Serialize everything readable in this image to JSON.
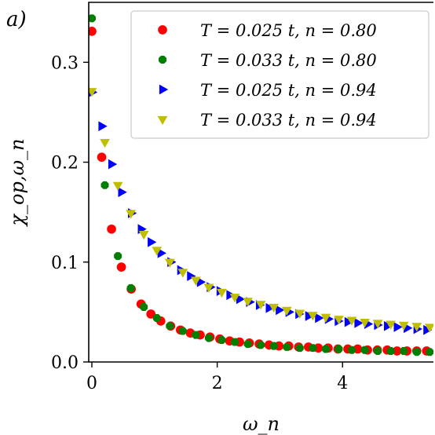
{
  "panel_label": "a)",
  "chart_data": {
    "type": "scatter",
    "xlabel": "ω_n",
    "ylabel": "χ_op,ω_n",
    "xlim": [
      -0.05,
      5.45
    ],
    "ylim": [
      0.0,
      0.36
    ],
    "xticks": [
      0,
      2,
      4
    ],
    "xtick_labels": [
      "0",
      "2",
      "4"
    ],
    "yticks": [
      0.0,
      0.1,
      0.2,
      0.3
    ],
    "ytick_labels": [
      "0.0",
      "0.1",
      "0.2",
      "0.3"
    ],
    "grid": false,
    "legend_position": "top-right",
    "series": [
      {
        "name": "T = 0.025 t, n = 0.80",
        "color": "#ff0000",
        "marker": "circle",
        "x": [
          0.0,
          0.157,
          0.314,
          0.471,
          0.628,
          0.785,
          0.942,
          1.1,
          1.257,
          1.414,
          1.571,
          1.728,
          1.885,
          2.042,
          2.199,
          2.356,
          2.513,
          2.67,
          2.827,
          2.985,
          3.142,
          3.299,
          3.456,
          3.613,
          3.77,
          3.927,
          4.084,
          4.241,
          4.398,
          4.555,
          4.712,
          4.869,
          5.027,
          5.184,
          5.341
        ],
        "y": [
          0.331,
          0.205,
          0.133,
          0.095,
          0.073,
          0.058,
          0.048,
          0.041,
          0.036,
          0.032,
          0.029,
          0.027,
          0.025,
          0.023,
          0.021,
          0.02,
          0.019,
          0.018,
          0.017,
          0.016,
          0.016,
          0.015,
          0.015,
          0.014,
          0.014,
          0.013,
          0.013,
          0.013,
          0.012,
          0.012,
          0.012,
          0.011,
          0.011,
          0.011,
          0.011
        ]
      },
      {
        "name": "T = 0.033 t, n = 0.80",
        "color": "#008000",
        "marker": "octagon",
        "x": [
          0.0,
          0.207,
          0.415,
          0.622,
          0.829,
          1.037,
          1.244,
          1.451,
          1.659,
          1.866,
          2.073,
          2.281,
          2.488,
          2.695,
          2.903,
          3.11,
          3.318,
          3.525,
          3.732,
          3.94,
          4.147,
          4.354,
          4.562,
          4.769,
          4.976,
          5.184,
          5.391
        ],
        "y": [
          0.344,
          0.177,
          0.106,
          0.074,
          0.055,
          0.044,
          0.036,
          0.031,
          0.027,
          0.024,
          0.022,
          0.02,
          0.018,
          0.017,
          0.016,
          0.015,
          0.014,
          0.014,
          0.013,
          0.013,
          0.012,
          0.012,
          0.011,
          0.011,
          0.011,
          0.01,
          0.01
        ]
      },
      {
        "name": "T = 0.025 t, n = 0.94",
        "color": "#0000ff",
        "marker": "triangle-right",
        "x": [
          0.0,
          0.157,
          0.314,
          0.471,
          0.628,
          0.785,
          0.942,
          1.1,
          1.257,
          1.414,
          1.571,
          1.728,
          1.885,
          2.042,
          2.199,
          2.356,
          2.513,
          2.67,
          2.827,
          2.985,
          3.142,
          3.299,
          3.456,
          3.613,
          3.77,
          3.927,
          4.084,
          4.241,
          4.398,
          4.555,
          4.712,
          4.869,
          5.027,
          5.184,
          5.341
        ],
        "y": [
          0.27,
          0.236,
          0.198,
          0.17,
          0.149,
          0.133,
          0.12,
          0.109,
          0.1,
          0.092,
          0.086,
          0.08,
          0.075,
          0.071,
          0.067,
          0.063,
          0.06,
          0.057,
          0.054,
          0.052,
          0.05,
          0.048,
          0.046,
          0.044,
          0.043,
          0.041,
          0.04,
          0.039,
          0.038,
          0.037,
          0.036,
          0.035,
          0.034,
          0.033,
          0.032
        ]
      },
      {
        "name": "T = 0.033 t, n = 0.94",
        "color": "#bfbf00",
        "marker": "triangle-down",
        "x": [
          0.0,
          0.207,
          0.415,
          0.622,
          0.829,
          1.037,
          1.244,
          1.451,
          1.659,
          1.866,
          2.073,
          2.281,
          2.488,
          2.695,
          2.903,
          3.11,
          3.318,
          3.525,
          3.732,
          3.94,
          4.147,
          4.354,
          4.562,
          4.769,
          4.976,
          5.184,
          5.391
        ],
        "y": [
          0.271,
          0.22,
          0.177,
          0.149,
          0.128,
          0.112,
          0.1,
          0.09,
          0.082,
          0.075,
          0.07,
          0.065,
          0.061,
          0.058,
          0.055,
          0.052,
          0.049,
          0.047,
          0.045,
          0.043,
          0.042,
          0.04,
          0.039,
          0.038,
          0.037,
          0.036,
          0.035
        ]
      }
    ]
  }
}
